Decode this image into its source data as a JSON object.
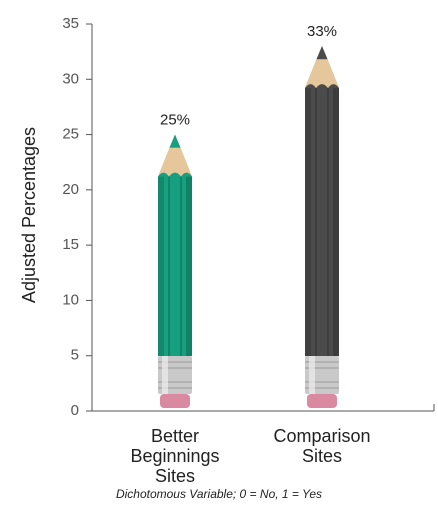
{
  "chart_data": {
    "type": "pencil-bar",
    "y_label": "Adjusted Percentages",
    "caption": "Dichotomous Variable; 0 = No, 1 = Yes",
    "categories": [
      "Better Beginnings Sites",
      "Comparison Sites"
    ],
    "values": [
      25,
      33
    ],
    "value_labels": [
      "25%",
      "33%"
    ],
    "colors": [
      "#17a07f",
      "#4b4b4b"
    ],
    "ylim": [
      0,
      35
    ],
    "yticks": [
      0,
      5,
      10,
      15,
      20,
      25,
      30,
      35
    ]
  }
}
